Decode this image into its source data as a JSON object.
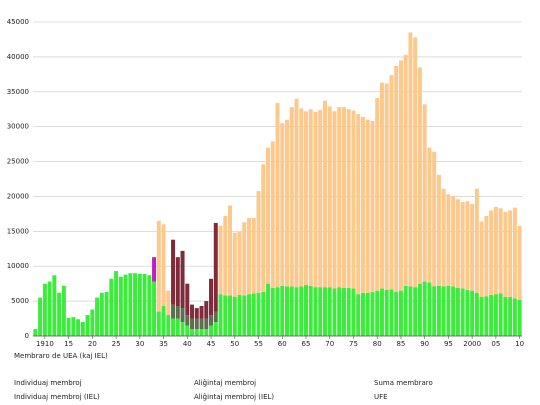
{
  "chart_data": {
    "type": "stacked-bar",
    "x_label": "Membraro de UEA (kaj IEL)",
    "x": [
      1908,
      1909,
      1910,
      1911,
      1912,
      1913,
      1914,
      1915,
      1916,
      1917,
      1918,
      1919,
      1920,
      1921,
      1922,
      1923,
      1924,
      1925,
      1926,
      1927,
      1928,
      1929,
      1930,
      1931,
      1932,
      1933,
      1934,
      1935,
      1936,
      1937,
      1938,
      1939,
      1940,
      1941,
      1942,
      1943,
      1944,
      1945,
      1946,
      1947,
      1948,
      1949,
      1950,
      1951,
      1952,
      1953,
      1954,
      1955,
      1956,
      1957,
      1958,
      1959,
      1960,
      1961,
      1962,
      1963,
      1964,
      1965,
      1966,
      1967,
      1968,
      1969,
      1970,
      1971,
      1972,
      1973,
      1974,
      1975,
      1976,
      1977,
      1978,
      1979,
      1980,
      1981,
      1982,
      1983,
      1984,
      1985,
      1986,
      1987,
      1988,
      1989,
      1990,
      1991,
      1992,
      1993,
      1994,
      1995,
      1996,
      1997,
      1998,
      1999,
      2000,
      2001,
      2002,
      2003,
      2004,
      2005,
      2006,
      2007,
      2008,
      2009,
      2010
    ],
    "xlim": [
      1907.5,
      2010.5
    ],
    "xticks": [
      1910,
      {
        "value": 1915,
        "label": "15"
      },
      {
        "value": 1920,
        "label": "20"
      },
      {
        "value": 1925,
        "label": "25"
      },
      {
        "value": 1930,
        "label": "30"
      },
      {
        "value": 1935,
        "label": "35"
      },
      {
        "value": 1940,
        "label": "40"
      },
      {
        "value": 1945,
        "label": "45"
      },
      {
        "value": 1950,
        "label": "50"
      },
      {
        "value": 1955,
        "label": "55"
      },
      {
        "value": 1960,
        "label": "60"
      },
      {
        "value": 1965,
        "label": "65"
      },
      {
        "value": 1970,
        "label": "70"
      },
      {
        "value": 1975,
        "label": "75"
      },
      {
        "value": 1980,
        "label": "80"
      },
      {
        "value": 1985,
        "label": "85"
      },
      {
        "value": 1990,
        "label": "90"
      },
      {
        "value": 1995,
        "label": "95"
      },
      2000,
      {
        "value": 2005,
        "label": "05"
      },
      {
        "value": 2010,
        "label": "10"
      }
    ],
    "ylim": [
      0,
      45000
    ],
    "yticks": [
      0,
      5000,
      10000,
      15000,
      20000,
      25000,
      30000,
      35000,
      40000,
      45000
    ],
    "grid": true,
    "series": [
      {
        "name": "Individuaj membroj",
        "color": "#3dea3d",
        "values": [
          1000,
          5500,
          7500,
          7800,
          8700,
          6200,
          7200,
          2600,
          2700,
          2400,
          2000,
          3000,
          3800,
          5500,
          6200,
          6300,
          8200,
          9300,
          8500,
          8800,
          9000,
          9000,
          8900,
          8900,
          8700,
          7800,
          3500,
          4300,
          3000,
          2500,
          2500,
          2000,
          1500,
          1000,
          1000,
          1000,
          1000,
          1500,
          2000,
          6000,
          5800,
          5800,
          5600,
          5900,
          5800,
          6000,
          6100,
          6200,
          6300,
          7500,
          6900,
          7000,
          7200,
          7100,
          7100,
          7000,
          7100,
          7300,
          7200,
          7000,
          7000,
          7000,
          7000,
          6800,
          7000,
          6900,
          6900,
          6800,
          6000,
          6200,
          6200,
          6300,
          6500,
          6800,
          6600,
          6700,
          6300,
          6500,
          7200,
          7100,
          7000,
          7500,
          7800,
          7700,
          7100,
          7200,
          7100,
          7200,
          7100,
          6900,
          6800,
          6600,
          6500,
          6200,
          5600,
          5700,
          5900,
          6000,
          6100,
          5600,
          5600,
          5400,
          5200
        ]
      },
      {
        "name": "Aliĝintaj membroj",
        "color": "#fcc88c",
        "values": [
          null,
          null,
          null,
          null,
          null,
          null,
          null,
          null,
          null,
          null,
          null,
          null,
          null,
          null,
          null,
          null,
          null,
          null,
          null,
          null,
          null,
          null,
          null,
          null,
          null,
          null,
          13000,
          11700,
          3500,
          null,
          null,
          null,
          null,
          null,
          null,
          null,
          null,
          null,
          null,
          9800,
          11400,
          12900,
          9200,
          9000,
          10500,
          10900,
          10800,
          14600,
          18300,
          19500,
          21000,
          26400,
          23300,
          23900,
          25700,
          27000,
          25500,
          24900,
          25300,
          25100,
          25400,
          26700,
          25900,
          25400,
          25800,
          25900,
          25600,
          25500,
          25800,
          25200,
          24800,
          24500,
          27600,
          29500,
          29600,
          30700,
          32400,
          33000,
          33100,
          36400,
          35800,
          31000,
          25400,
          19300,
          19300,
          15900,
          14000,
          13100,
          12900,
          12700,
          12400,
          12700,
          12400,
          14900,
          10800,
          11500,
          12100,
          12500,
          12200,
          12200,
          12400,
          13000,
          10600
        ]
      },
      {
        "name": "Suma membraro",
        "color": "#2fb58a"
      },
      {
        "name": "Individuaj membroj (IEL)",
        "color": "#5f6e52",
        "values": [
          null,
          null,
          null,
          null,
          null,
          null,
          null,
          null,
          null,
          null,
          null,
          null,
          null,
          null,
          null,
          null,
          null,
          null,
          null,
          null,
          null,
          null,
          null,
          null,
          null,
          null,
          null,
          null,
          null,
          2000,
          1800,
          2000,
          1500,
          1500,
          1500,
          1500,
          1500,
          1500,
          1500,
          null,
          null,
          null,
          null,
          null,
          null,
          null,
          null,
          null,
          null,
          null,
          null,
          null,
          null,
          null,
          null,
          null,
          null,
          null,
          null,
          null,
          null,
          null,
          null,
          null,
          null,
          null,
          null,
          null,
          null,
          null,
          null,
          null,
          null,
          null,
          null,
          null,
          null,
          null,
          null,
          null,
          null,
          null,
          null,
          null,
          null,
          null,
          null,
          null,
          null,
          null,
          null,
          null,
          null,
          null,
          null,
          null,
          null,
          null,
          null,
          null,
          null,
          null,
          null
        ]
      },
      {
        "name": "Aliĝintaj membroj (IEL)",
        "color": "#7f2b3b",
        "values": [
          null,
          null,
          null,
          null,
          null,
          null,
          null,
          null,
          null,
          null,
          null,
          null,
          null,
          null,
          null,
          null,
          null,
          null,
          null,
          null,
          null,
          null,
          null,
          null,
          null,
          null,
          null,
          null,
          null,
          9300,
          7000,
          8200,
          4500,
          2000,
          1500,
          1800,
          2500,
          5200,
          12700,
          null,
          null,
          null,
          null,
          null,
          null,
          null,
          null,
          null,
          null,
          null,
          null,
          null,
          null,
          null,
          null,
          null,
          null,
          null,
          null,
          null,
          null,
          null,
          null,
          null,
          null,
          null,
          null,
          null,
          null,
          null,
          null,
          null,
          null,
          null,
          null,
          null,
          null,
          null,
          null,
          null,
          null,
          null,
          null,
          null,
          null,
          null,
          null,
          null,
          null,
          null,
          null,
          null,
          null,
          null,
          null,
          null,
          null,
          null,
          null,
          null,
          null,
          null,
          null
        ]
      },
      {
        "name": "UFE",
        "color": "#bb22bb",
        "values": [
          null,
          null,
          null,
          null,
          null,
          null,
          null,
          null,
          null,
          null,
          null,
          null,
          null,
          null,
          null,
          null,
          null,
          null,
          null,
          null,
          null,
          null,
          null,
          null,
          null,
          3500,
          null,
          null,
          null,
          null,
          null,
          null,
          null,
          null,
          null,
          null,
          null,
          null,
          null,
          null,
          null,
          null,
          null,
          null,
          null,
          null,
          null,
          null,
          null,
          null,
          null,
          null,
          null,
          null,
          null,
          null,
          null,
          null,
          null,
          null,
          null,
          null,
          null,
          null,
          null,
          null,
          null,
          null,
          null,
          null,
          null,
          null,
          null,
          null,
          null,
          null,
          null,
          null,
          null,
          null,
          null,
          null,
          null,
          null,
          null,
          null,
          null,
          null,
          null,
          null,
          null,
          null,
          null,
          null,
          null,
          null,
          null,
          null,
          null,
          null,
          null,
          null,
          null
        ]
      }
    ]
  }
}
